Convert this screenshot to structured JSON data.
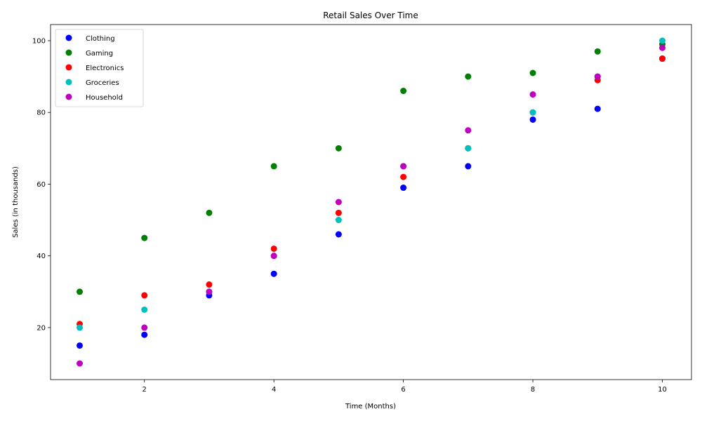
{
  "chart_data": {
    "type": "scatter",
    "title": "Retail Sales Over Time",
    "xlabel": "Time (Months)",
    "ylabel": "Sales (in thousands)",
    "xlim": [
      0.55,
      10.45
    ],
    "ylim": [
      5.5,
      104.5
    ],
    "xticks": [
      2,
      4,
      6,
      8,
      10
    ],
    "yticks": [
      20,
      40,
      60,
      80,
      100
    ],
    "grid": false,
    "legend_position": "top-left",
    "x": [
      1,
      2,
      3,
      4,
      5,
      6,
      7,
      8,
      9,
      10
    ],
    "series": [
      {
        "name": "Clothing",
        "color": "#0000ff",
        "values": [
          15,
          18,
          29,
          35,
          46,
          59,
          65,
          78,
          81,
          95
        ]
      },
      {
        "name": "Gaming",
        "color": "#008000",
        "values": [
          30,
          45,
          52,
          65,
          70,
          86,
          90,
          91,
          97,
          99
        ]
      },
      {
        "name": "Electronics",
        "color": "#ff0000",
        "values": [
          21,
          29,
          32,
          42,
          52,
          62,
          70,
          80,
          89,
          95
        ]
      },
      {
        "name": "Groceries",
        "color": "#00bfbf",
        "values": [
          20,
          25,
          30,
          40,
          50,
          65,
          70,
          80,
          90,
          100
        ]
      },
      {
        "name": "Household",
        "color": "#bf00bf",
        "values": [
          10,
          20,
          30,
          40,
          55,
          65,
          75,
          85,
          90,
          98
        ]
      }
    ]
  }
}
